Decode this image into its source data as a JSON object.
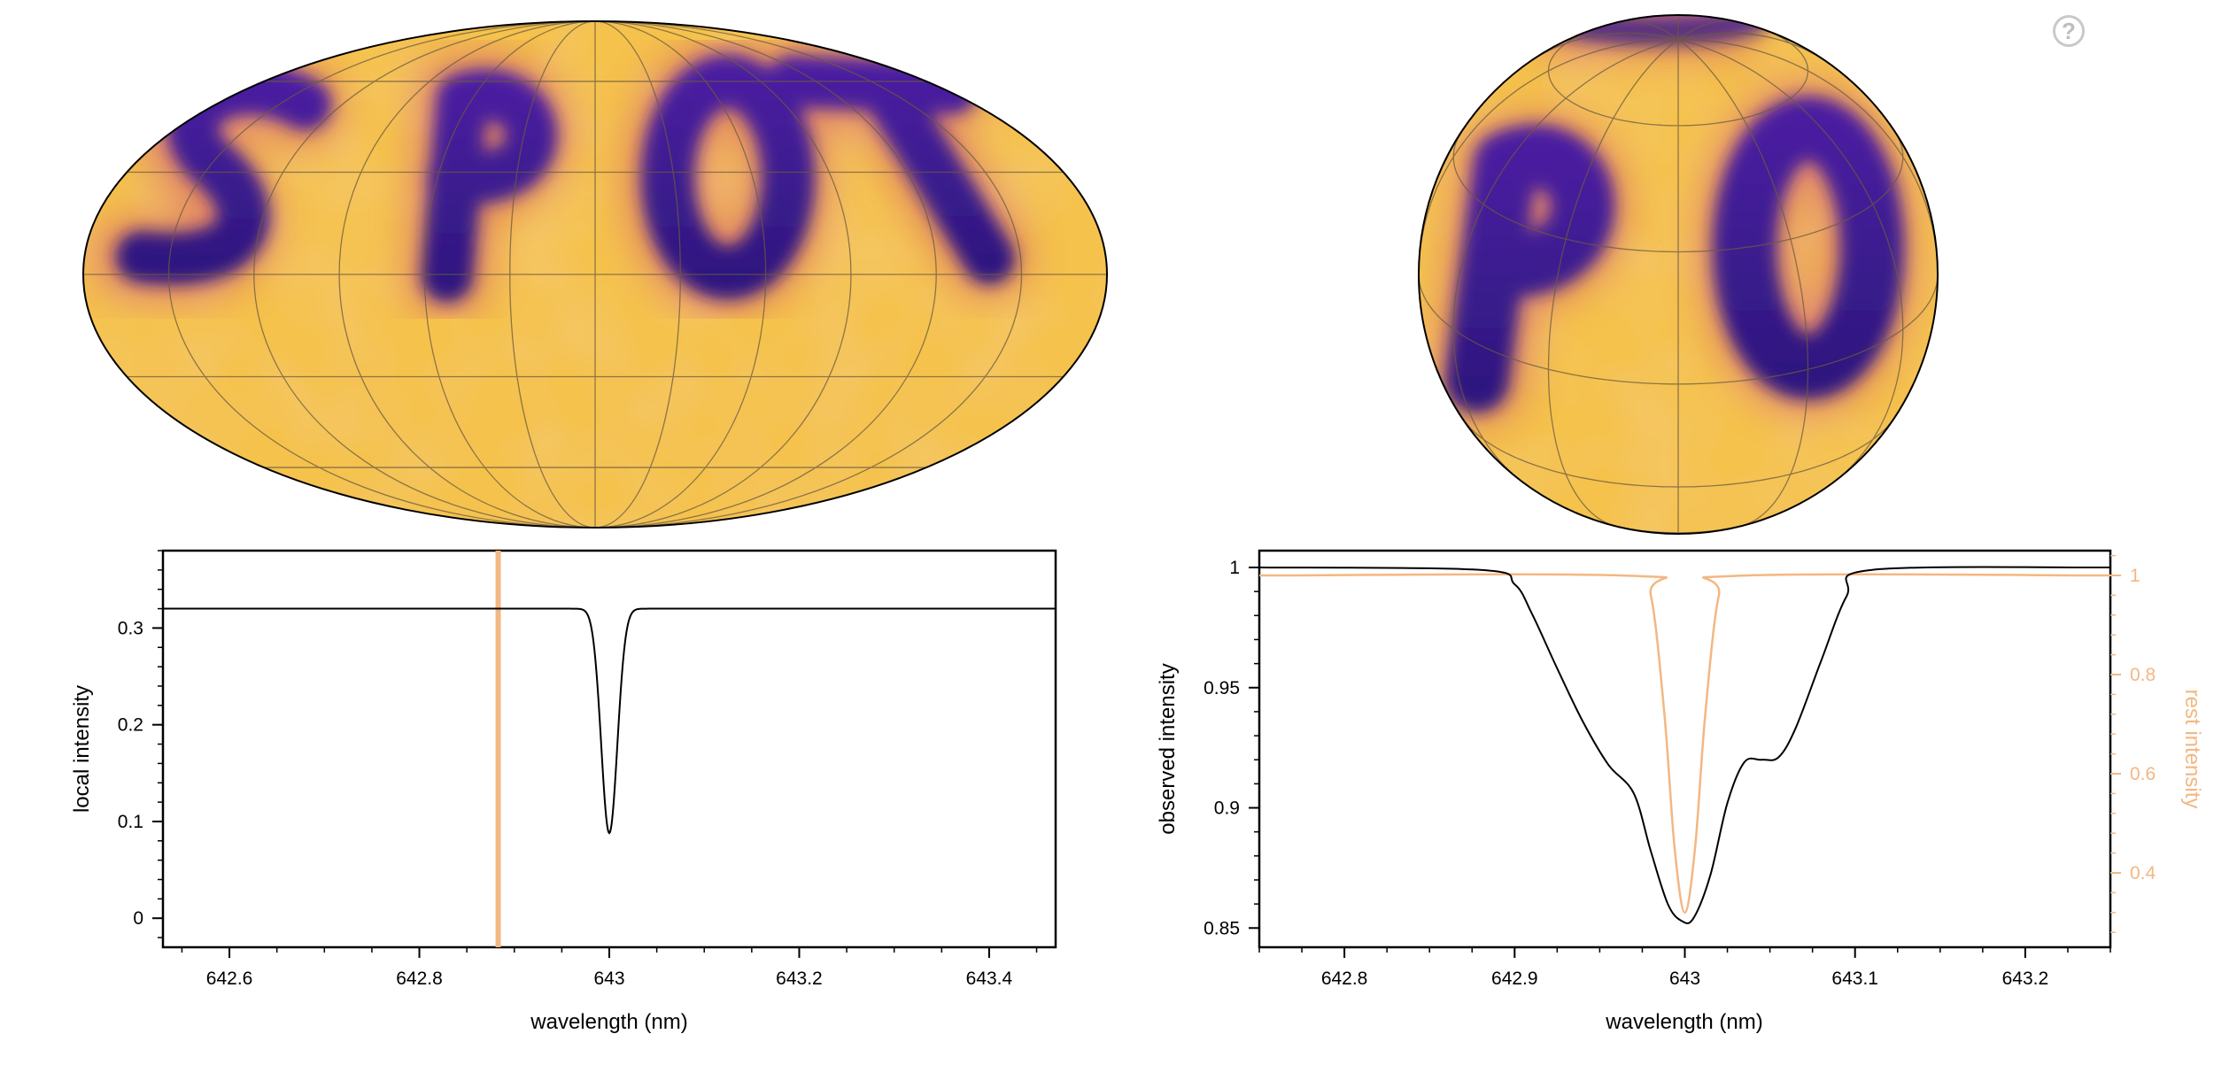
{
  "help": {
    "glyph": "?"
  },
  "colors": {
    "spot": "#3a1d8f",
    "photosphere": "#f5c24c",
    "rest_line": "#f3b783",
    "axis": "#000000",
    "grid": "#6b5a40"
  },
  "maps": {
    "mollweide": {
      "text": "SPOT",
      "projection": "mollweide"
    },
    "orthographic": {
      "visible_text": "PO",
      "projection": "orthographic"
    }
  },
  "chart_data": [
    {
      "type": "line",
      "xlabel": "wavelength (nm)",
      "ylabel": "local intensity",
      "xlim": [
        642.53,
        643.47
      ],
      "ylim": [
        -0.03,
        0.38
      ],
      "xticks": [
        642.6,
        642.8,
        643,
        643.2,
        643.4
      ],
      "xtick_labels": [
        "642.6",
        "642.8",
        "643",
        "643.2",
        "643.4"
      ],
      "yticks": [
        0,
        0.1,
        0.2,
        0.3
      ],
      "ytick_labels": [
        "0",
        "0.1",
        "0.2",
        "0.3"
      ],
      "series": [
        {
          "continuum": 0.32,
          "line_center": 643.0,
          "line_depth": 0.232,
          "line_sigma": 0.0085
        }
      ],
      "marker_line": {
        "x": 642.883
      }
    },
    {
      "type": "line",
      "xlabel": "wavelength (nm)",
      "ylabel": "observed intensity",
      "y2label": "rest intensity",
      "xlim": [
        642.75,
        643.25
      ],
      "ylim": [
        0.842,
        1.007
      ],
      "y2lim": [
        0.25,
        1.05
      ],
      "xticks": [
        642.8,
        642.9,
        643,
        643.1,
        643.2
      ],
      "xtick_labels": [
        "642.8",
        "642.9",
        "643",
        "643.1",
        "643.2"
      ],
      "yticks": [
        0.85,
        0.9,
        0.95,
        1
      ],
      "ytick_labels": [
        "0.85",
        "0.9",
        "0.95",
        "1"
      ],
      "y2ticks": [
        0.4,
        0.6,
        0.8,
        1
      ],
      "y2tick_labels": [
        "0.4",
        "0.6",
        "0.8",
        "1"
      ],
      "series": [
        {
          "axis": "left",
          "x": [
            642.75,
            642.88,
            642.9,
            642.91,
            642.925,
            642.94,
            642.955,
            642.97,
            642.98,
            642.99,
            642.998,
            643.005,
            643.015,
            643.025,
            643.035,
            643.045,
            643.055,
            643.065,
            643.08,
            643.095,
            643.11,
            643.25
          ],
          "y": [
            1.0,
            0.999,
            0.993,
            0.981,
            0.958,
            0.936,
            0.918,
            0.906,
            0.882,
            0.86,
            0.853,
            0.854,
            0.872,
            0.902,
            0.919,
            0.92,
            0.921,
            0.933,
            0.961,
            0.988,
            0.999,
            1.0
          ]
        },
        {
          "axis": "right",
          "x": [
            642.75,
            642.97,
            642.98,
            642.988,
            642.994,
            643.0,
            643.006,
            643.012,
            643.02,
            643.03,
            643.25
          ],
          "y": [
            1.0,
            0.999,
            0.96,
            0.72,
            0.45,
            0.32,
            0.45,
            0.72,
            0.96,
            0.999,
            1.0
          ]
        }
      ]
    }
  ]
}
